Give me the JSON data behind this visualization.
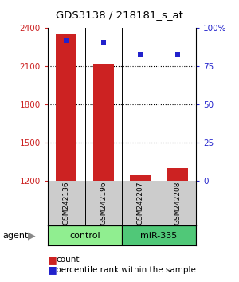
{
  "title": "GDS3138 / 218181_s_at",
  "samples": [
    "GSM242136",
    "GSM242196",
    "GSM242207",
    "GSM242208"
  ],
  "counts": [
    2350,
    2120,
    1240,
    1300
  ],
  "percentile_ranks": [
    92,
    91,
    83,
    83
  ],
  "ylim_left": [
    1200,
    2400
  ],
  "ylim_right": [
    0,
    100
  ],
  "yticks_left": [
    1200,
    1500,
    1800,
    2100,
    2400
  ],
  "yticks_right": [
    0,
    25,
    50,
    75,
    100
  ],
  "ytick_labels_right": [
    "0",
    "25",
    "50",
    "75",
    "100%"
  ],
  "groups": [
    {
      "label": "control",
      "samples": [
        0,
        1
      ],
      "color": "#90EE90"
    },
    {
      "label": "miR-335",
      "samples": [
        2,
        3
      ],
      "color": "#50C878"
    }
  ],
  "group_label": "agent",
  "bar_color": "#CC2222",
  "dot_color": "#2222CC",
  "bar_width": 0.55,
  "sample_box_color": "#CCCCCC",
  "left_tick_color": "#CC2222",
  "right_tick_color": "#2222CC",
  "legend_count_color": "#CC2222",
  "legend_pct_color": "#2222CC"
}
